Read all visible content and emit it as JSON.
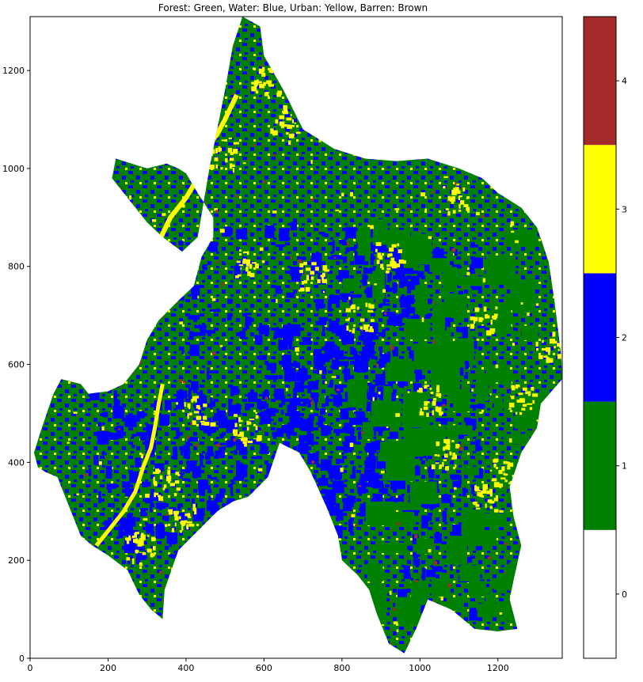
{
  "title": "Forest: Green, Water: Blue, Urban: Yellow, Barren: Brown",
  "x_ticks": [
    "0",
    "200",
    "400",
    "600",
    "800",
    "1000",
    "1200"
  ],
  "y_ticks": [
    "0",
    "200",
    "400",
    "600",
    "800",
    "1000",
    "1200"
  ],
  "colorbar": {
    "ticks": [
      "0",
      "1",
      "2",
      "3",
      "4"
    ],
    "colors": [
      "#ffffff",
      "#008000",
      "#0000ff",
      "#ffff00",
      "#a52a2a"
    ]
  },
  "chart_data": {
    "type": "heatmap",
    "title": "Forest: Green, Water: Blue, Urban: Yellow, Barren: Brown",
    "xlim": [
      0,
      1365
    ],
    "ylim": [
      0,
      1310
    ],
    "classes": [
      {
        "value": 0,
        "color": "#ffffff"
      },
      {
        "value": 1,
        "color": "#008000"
      },
      {
        "value": 2,
        "color": "#0000ff"
      },
      {
        "value": 3,
        "color": "#ffff00"
      },
      {
        "value": 4,
        "color": "#a52a2a"
      }
    ],
    "grid": false,
    "region_outline": [
      [
        545,
        1310
      ],
      [
        590,
        1290
      ],
      [
        600,
        1230
      ],
      [
        650,
        1160
      ],
      [
        700,
        1080
      ],
      [
        780,
        1040
      ],
      [
        860,
        1020
      ],
      [
        940,
        1015
      ],
      [
        1020,
        1020
      ],
      [
        1100,
        1000
      ],
      [
        1160,
        980
      ],
      [
        1200,
        950
      ],
      [
        1260,
        920
      ],
      [
        1300,
        880
      ],
      [
        1330,
        810
      ],
      [
        1345,
        730
      ],
      [
        1362,
        620
      ],
      [
        1365,
        570
      ],
      [
        1310,
        520
      ],
      [
        1300,
        470
      ],
      [
        1260,
        420
      ],
      [
        1230,
        350
      ],
      [
        1240,
        290
      ],
      [
        1260,
        230
      ],
      [
        1240,
        160
      ],
      [
        1230,
        120
      ],
      [
        1250,
        60
      ],
      [
        1200,
        55
      ],
      [
        1140,
        60
      ],
      [
        1080,
        100
      ],
      [
        1020,
        120
      ],
      [
        990,
        60
      ],
      [
        960,
        10
      ],
      [
        920,
        30
      ],
      [
        890,
        90
      ],
      [
        870,
        140
      ],
      [
        840,
        170
      ],
      [
        800,
        200
      ],
      [
        790,
        250
      ],
      [
        760,
        310
      ],
      [
        720,
        380
      ],
      [
        690,
        420
      ],
      [
        640,
        440
      ],
      [
        610,
        370
      ],
      [
        560,
        330
      ],
      [
        520,
        320
      ],
      [
        480,
        300
      ],
      [
        430,
        260
      ],
      [
        380,
        220
      ],
      [
        345,
        140
      ],
      [
        340,
        80
      ],
      [
        310,
        100
      ],
      [
        280,
        130
      ],
      [
        250,
        180
      ],
      [
        200,
        210
      ],
      [
        160,
        230
      ],
      [
        130,
        250
      ],
      [
        110,
        290
      ],
      [
        90,
        330
      ],
      [
        70,
        370
      ],
      [
        40,
        380
      ],
      [
        20,
        390
      ],
      [
        10,
        420
      ],
      [
        30,
        470
      ],
      [
        60,
        540
      ],
      [
        80,
        570
      ],
      [
        130,
        560
      ],
      [
        150,
        540
      ],
      [
        200,
        545
      ],
      [
        240,
        560
      ],
      [
        280,
        600
      ],
      [
        300,
        650
      ],
      [
        330,
        690
      ],
      [
        380,
        730
      ],
      [
        420,
        760
      ],
      [
        440,
        820
      ],
      [
        470,
        860
      ],
      [
        470,
        900
      ],
      [
        430,
        950
      ],
      [
        400,
        990
      ],
      [
        380,
        1000
      ],
      [
        350,
        1010
      ],
      [
        300,
        1000
      ],
      [
        260,
        1010
      ],
      [
        220,
        1020
      ],
      [
        210,
        980
      ],
      [
        250,
        940
      ],
      [
        300,
        890
      ],
      [
        340,
        860
      ],
      [
        390,
        830
      ],
      [
        430,
        860
      ],
      [
        460,
        1000
      ],
      [
        480,
        1080
      ],
      [
        500,
        1160
      ],
      [
        520,
        1250
      ]
    ],
    "river_path": [
      [
        330,
        850
      ],
      [
        360,
        900
      ],
      [
        400,
        940
      ],
      [
        430,
        980
      ],
      [
        450,
        1040
      ],
      [
        480,
        1070
      ],
      [
        500,
        1100
      ],
      [
        530,
        1150
      ]
    ],
    "river2_path": [
      [
        170,
        230
      ],
      [
        200,
        260
      ],
      [
        240,
        300
      ],
      [
        270,
        340
      ],
      [
        290,
        390
      ],
      [
        310,
        430
      ],
      [
        320,
        470
      ],
      [
        330,
        520
      ],
      [
        340,
        560
      ]
    ]
  }
}
